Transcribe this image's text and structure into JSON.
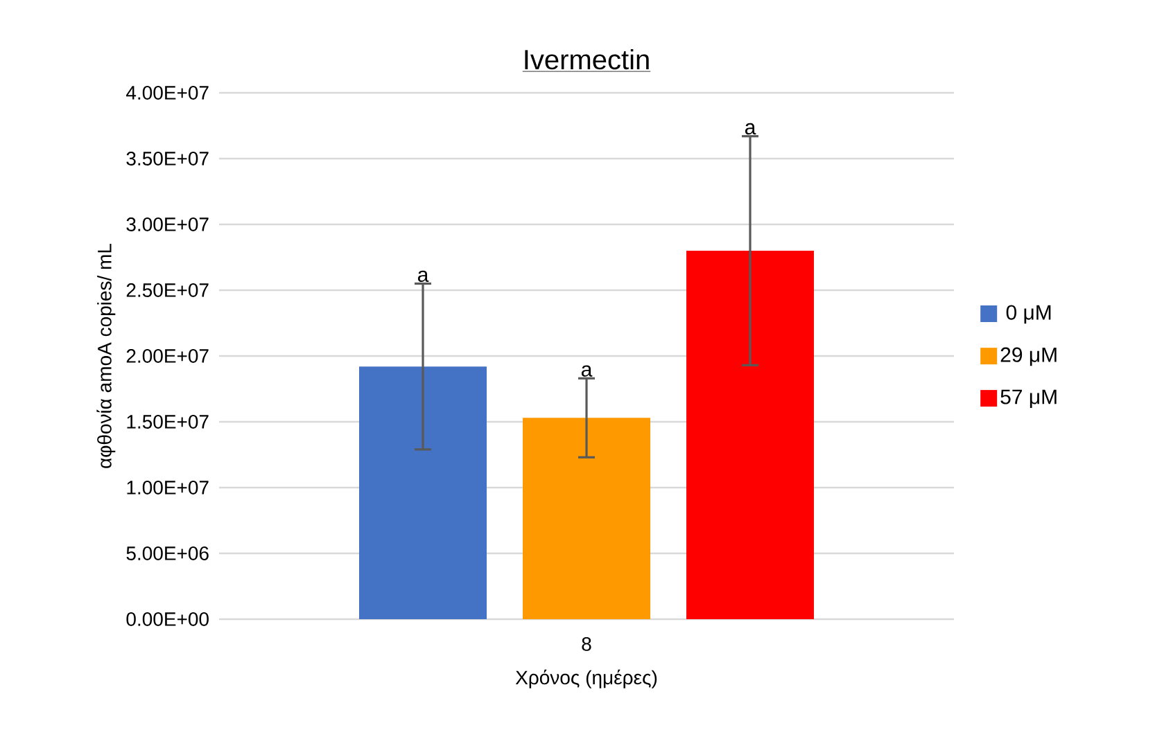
{
  "chart_data": {
    "type": "bar",
    "title": "Ivermectin",
    "xlabel": "Χρόνος (ημέρες)",
    "ylabel": "αφθονία amoA copies/ mL",
    "categories": [
      "8"
    ],
    "series": [
      {
        "name": "0 μM",
        "color": "#4472c4",
        "values": [
          19200000
        ],
        "errors": [
          6300000
        ]
      },
      {
        "name": "29 μM",
        "color": "#ff9900",
        "values": [
          15300000
        ],
        "errors": [
          3000000
        ]
      },
      {
        "name": "57 μM",
        "color": "#ff0000",
        "values": [
          28000000
        ],
        "errors": [
          8700000
        ]
      }
    ],
    "annotations": [
      "a",
      "a",
      "a"
    ],
    "ylim": [
      0,
      40000000
    ],
    "yticks": [
      {
        "value": 0,
        "label": "0.00E+00"
      },
      {
        "value": 5000000,
        "label": "5.00E+06"
      },
      {
        "value": 10000000,
        "label": "1.00E+07"
      },
      {
        "value": 15000000,
        "label": "1.50E+07"
      },
      {
        "value": 20000000,
        "label": "2.00E+07"
      },
      {
        "value": 25000000,
        "label": "2.50E+07"
      },
      {
        "value": 30000000,
        "label": "3.00E+07"
      },
      {
        "value": 35000000,
        "label": "3.50E+07"
      },
      {
        "value": 40000000,
        "label": "4.00E+07"
      }
    ],
    "grid": "y",
    "legend": "right"
  }
}
